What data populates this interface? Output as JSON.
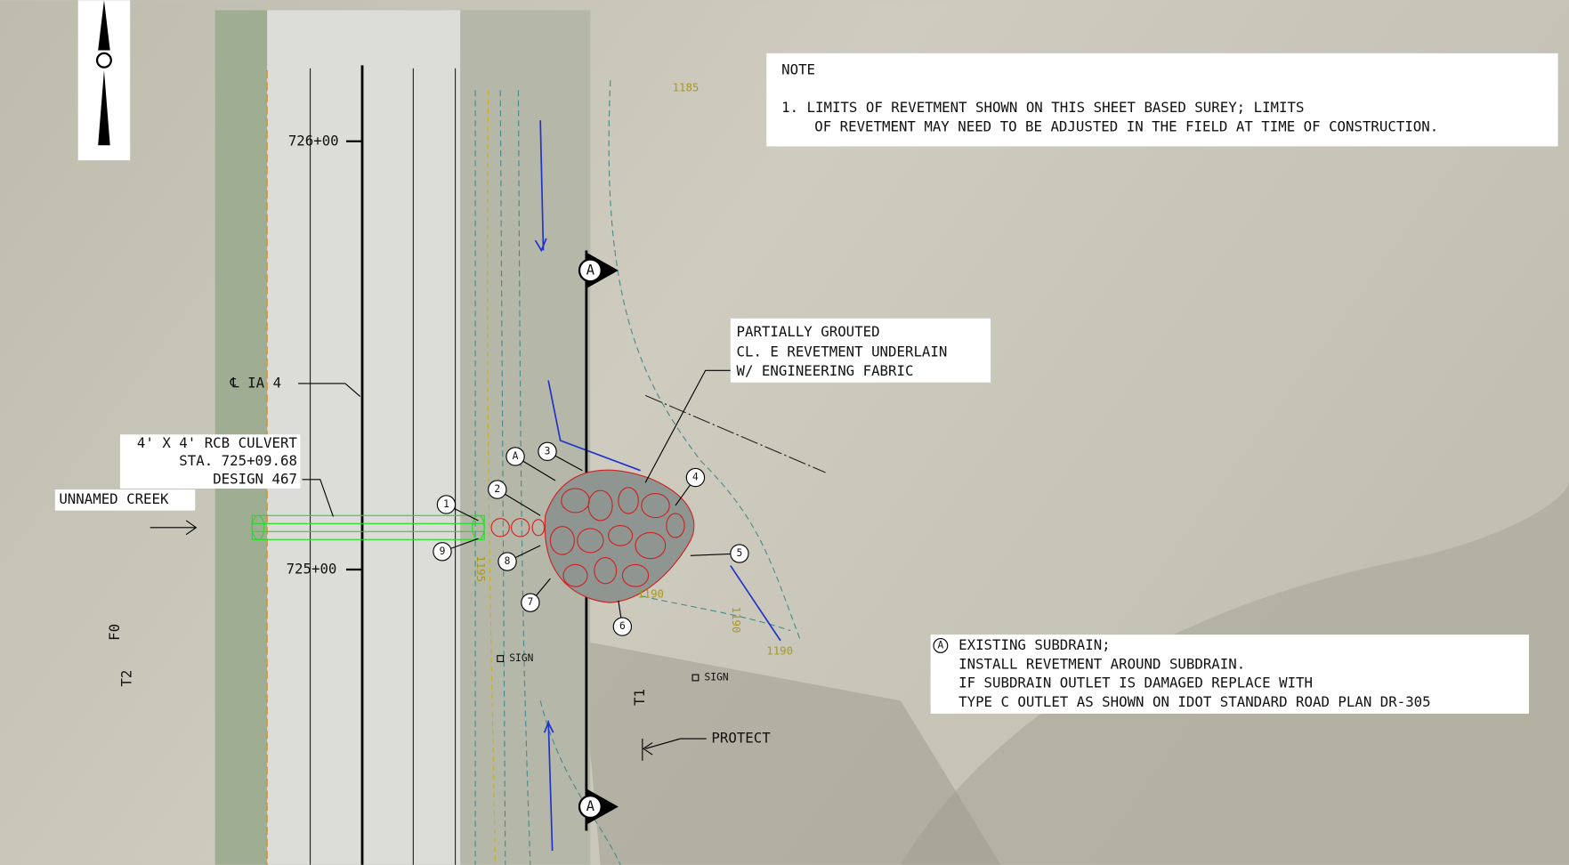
{
  "stations": [
    "726+00",
    "725+00"
  ],
  "note": {
    "title": "NOTE",
    "lines": [
      "1.  LIMITS OF REVETMENT SHOWN ON THIS SHEET BASED SUREY; LIMITS",
      "OF REVETMENT MAY NEED TO BE ADJUSTED IN THE FIELD AT TIME OF CONSTRUCTION."
    ]
  },
  "revetment_callout": [
    "PARTIALLY GROUTED",
    "CL. E REVETMENT UNDERLAIN",
    "W/ ENGINEERING FABRIC"
  ],
  "culvert_callout": [
    "4' X 4' RCB CULVERT",
    "STA. 725+09.68",
    "DESIGN 467"
  ],
  "creek": "UNNAMED CREEK",
  "centerline": "℄ IA 4",
  "subdrain_note": {
    "marker": "A",
    "lines": [
      "EXISTING SUBDRAIN;",
      "INSTALL REVETMENT AROUND SUBDRAIN.",
      "IF SUBDRAIN OUTLET IS DAMAGED REPLACE WITH",
      "TYPE C OUTLET AS SHOWN ON IDOT STANDARD ROAD PLAN DR-305"
    ]
  },
  "section_markers": [
    "A",
    "A"
  ],
  "markers": [
    "1",
    "2",
    "A",
    "3",
    "4",
    "5",
    "6",
    "7",
    "8",
    "9"
  ],
  "contours": [
    "1185",
    "1195",
    "1190",
    "1190",
    "1190"
  ],
  "signs": [
    "SIGN",
    "SIGN"
  ],
  "protect": "PROTECT",
  "line_labels": [
    "T1",
    "F0",
    "T2"
  ]
}
